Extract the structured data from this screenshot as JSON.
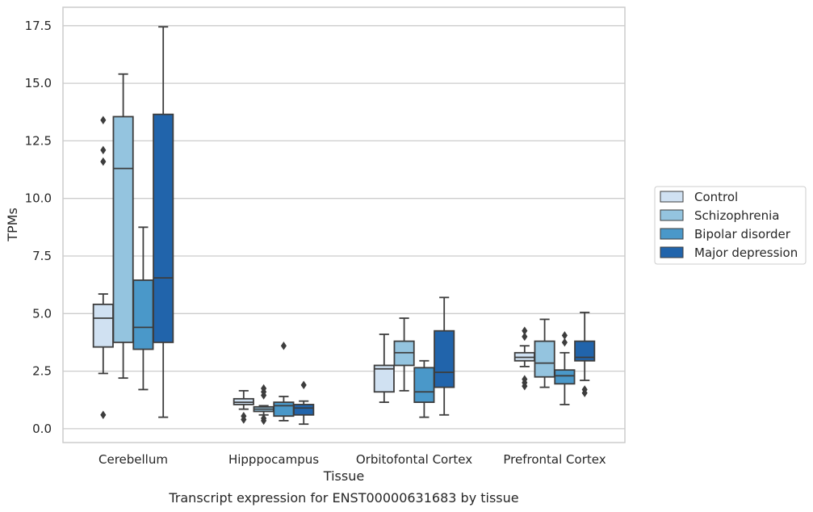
{
  "caption": "Transcript expression for ENST00000631683 by tissue",
  "chart_data": {
    "type": "boxplot",
    "xlabel": "Tissue",
    "ylabel": "TPMs",
    "ylim": [
      -0.6,
      18.3
    ],
    "yticks": [
      0.0,
      2.5,
      5.0,
      7.5,
      10.0,
      12.5,
      15.0,
      17.5
    ],
    "ytick_labels": [
      "0.0",
      "2.5",
      "5.0",
      "7.5",
      "10.0",
      "12.5",
      "15.0",
      "17.5"
    ],
    "grid": "horizontal",
    "legend_position": "right",
    "categories": [
      "Cerebellum",
      "Hipppocampus",
      "Orbitofontal Cortex",
      "Prefrontal Cortex"
    ],
    "series": [
      {
        "name": "Control",
        "color": "#d0e1f2",
        "boxes": [
          {
            "whislo": 2.4,
            "q1": 3.55,
            "med": 4.8,
            "q3": 5.4,
            "whishi": 5.85,
            "fliers": [
              0.6,
              11.6,
              12.1,
              13.4
            ]
          },
          {
            "whislo": 0.85,
            "q1": 1.05,
            "med": 1.15,
            "q3": 1.3,
            "whishi": 1.65,
            "fliers": [
              0.4,
              0.55
            ]
          },
          {
            "whislo": 1.15,
            "q1": 1.6,
            "med": 2.6,
            "q3": 2.75,
            "whishi": 4.1,
            "fliers": []
          },
          {
            "whislo": 2.7,
            "q1": 2.95,
            "med": 3.1,
            "q3": 3.3,
            "whishi": 3.6,
            "fliers": [
              1.85,
              2.0,
              2.15,
              4.0,
              4.25
            ]
          }
        ]
      },
      {
        "name": "Schizophrenia",
        "color": "#94c4df",
        "boxes": [
          {
            "whislo": 2.2,
            "q1": 3.75,
            "med": 11.3,
            "q3": 13.55,
            "whishi": 15.4,
            "fliers": []
          },
          {
            "whislo": 0.6,
            "q1": 0.75,
            "med": 0.85,
            "q3": 0.95,
            "whishi": 1.0,
            "fliers": [
              0.35,
              0.45,
              1.45,
              1.6,
              1.75
            ]
          },
          {
            "whislo": 1.65,
            "q1": 2.75,
            "med": 3.3,
            "q3": 3.8,
            "whishi": 4.8,
            "fliers": []
          },
          {
            "whislo": 1.8,
            "q1": 2.25,
            "med": 2.85,
            "q3": 3.8,
            "whishi": 4.75,
            "fliers": []
          }
        ]
      },
      {
        "name": "Bipolar disorder",
        "color": "#4a98c9",
        "boxes": [
          {
            "whislo": 1.7,
            "q1": 3.45,
            "med": 4.4,
            "q3": 6.45,
            "whishi": 8.75,
            "fliers": []
          },
          {
            "whislo": 0.35,
            "q1": 0.55,
            "med": 1.0,
            "q3": 1.15,
            "whishi": 1.4,
            "fliers": [
              3.6
            ]
          },
          {
            "whislo": 0.5,
            "q1": 1.15,
            "med": 1.6,
            "q3": 2.65,
            "whishi": 2.95,
            "fliers": []
          },
          {
            "whislo": 1.05,
            "q1": 1.95,
            "med": 2.3,
            "q3": 2.55,
            "whishi": 3.3,
            "fliers": [
              3.75,
              4.05
            ]
          }
        ]
      },
      {
        "name": "Major depression",
        "color": "#2164ab",
        "boxes": [
          {
            "whislo": 0.5,
            "q1": 3.75,
            "med": 6.55,
            "q3": 13.65,
            "whishi": 17.45,
            "fliers": []
          },
          {
            "whislo": 0.2,
            "q1": 0.6,
            "med": 0.9,
            "q3": 1.05,
            "whishi": 1.2,
            "fliers": [
              1.9
            ]
          },
          {
            "whislo": 0.6,
            "q1": 1.8,
            "med": 2.45,
            "q3": 4.25,
            "whishi": 5.7,
            "fliers": []
          },
          {
            "whislo": 2.1,
            "q1": 2.95,
            "med": 3.1,
            "q3": 3.8,
            "whishi": 5.05,
            "fliers": [
              1.55,
              1.7
            ]
          }
        ]
      }
    ]
  }
}
